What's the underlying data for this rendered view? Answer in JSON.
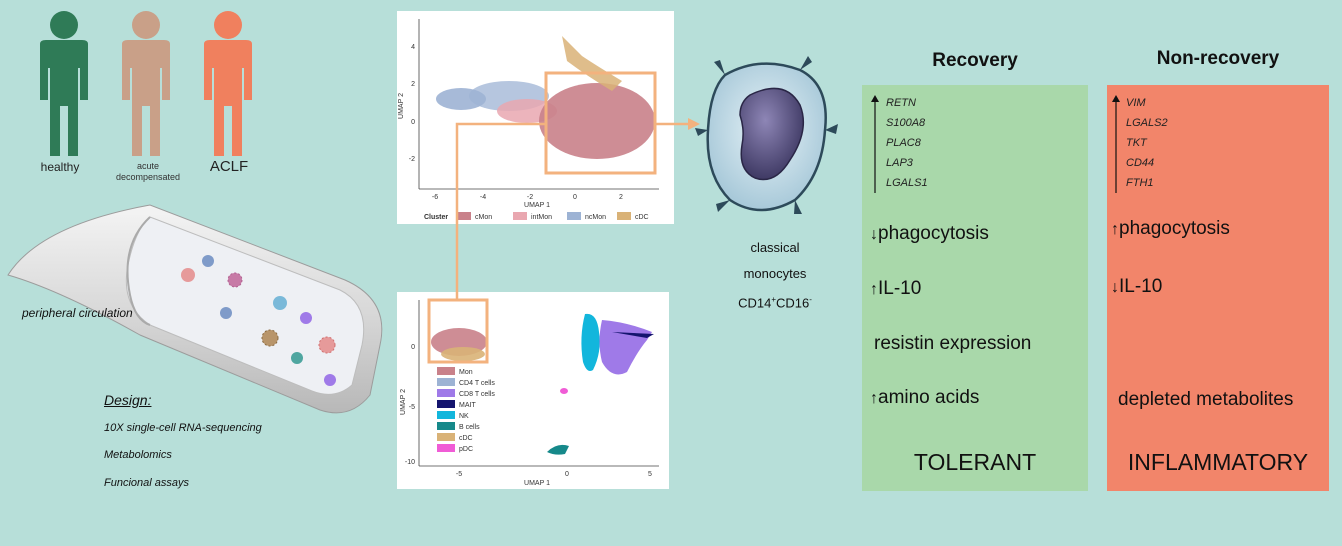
{
  "groups": {
    "healthy": {
      "label": "healthy",
      "color": "#2f7b57"
    },
    "decompensated": {
      "label_line1": "acute",
      "label_line2": "decompensated",
      "color": "#c9a088"
    },
    "aclf": {
      "label": "ACLF",
      "color": "#f0805e"
    }
  },
  "vessel": {
    "label": "peripheral circulation"
  },
  "design": {
    "heading": "Design:",
    "items": [
      "10X single-cell RNA-sequencing",
      "Metabolomics",
      "Funcional assays"
    ]
  },
  "umap_top": {
    "xlabel": "UMAP 1",
    "ylabel": "UMAP 2",
    "xticks": [
      "-6",
      "-4",
      "-2",
      "0",
      "2"
    ],
    "yticks": [
      "4",
      "2",
      "0",
      "-2"
    ],
    "legend_title": "Cluster",
    "legend": [
      {
        "name": "cMon",
        "color": "#c9818a"
      },
      {
        "name": "intMon",
        "color": "#e9a7b0"
      },
      {
        "name": "ncMon",
        "color": "#9db3d4"
      },
      {
        "name": "cDC",
        "color": "#d9b277"
      }
    ]
  },
  "umap_bottom": {
    "xlabel": "UMAP 1",
    "ylabel": "UMAP 2",
    "xticks": [
      "-5",
      "0",
      "5"
    ],
    "yticks": [
      "0",
      "-5",
      "-10"
    ],
    "legend": [
      {
        "name": "Mon",
        "color": "#c9818a"
      },
      {
        "name": "CD4 T cells",
        "color": "#9db3d4"
      },
      {
        "name": "CD8 T cells",
        "color": "#9f7ae8"
      },
      {
        "name": "MAIT",
        "color": "#14146e"
      },
      {
        "name": "NK",
        "color": "#12b6dc"
      },
      {
        "name": "B cells",
        "color": "#16898a"
      },
      {
        "name": "cDC",
        "color": "#d9b277"
      },
      {
        "name": "pDC",
        "color": "#f05cd6"
      }
    ]
  },
  "monocyte": {
    "line1": "classical",
    "line2": "monocytes",
    "marker": "CD14",
    "marker_sup1": "+",
    "marker_mid": "CD16",
    "marker_sup2": "-"
  },
  "recovery": {
    "title": "Recovery",
    "bg": "#a9d8aa",
    "genes": [
      "RETN",
      "S100A8",
      "PLAC8",
      "LAP3",
      "LGALS1"
    ],
    "phagocytosis": "phagocytosis",
    "il10": "IL-10",
    "resistin": "resistin expression",
    "amino": "amino acids",
    "outcome": "TOLERANT"
  },
  "nonrecovery": {
    "title": "Non-recovery",
    "bg": "#f2856a",
    "genes": [
      "VIM",
      "LGALS2",
      "TKT",
      "CD44",
      "FTH1"
    ],
    "phagocytosis": "phagocytosis",
    "il10": "IL-10",
    "metabolites": "depleted metabolites",
    "outcome": "INFLAMMATORY"
  },
  "highlight_color": "#f3b27e"
}
